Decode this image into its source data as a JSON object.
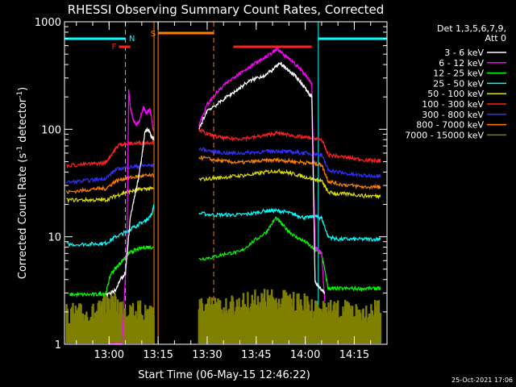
{
  "chart_data": {
    "type": "line",
    "title": "RHESSI Observing Summary Count Rates, Corrected",
    "xlabel": "Start Time (06-May-15 12:46:22)",
    "ylabel": "Corrected Count Rate (s⁻¹ detector⁻¹)",
    "ylabel_parts": {
      "main": "Corrected Count Rate (s",
      "sup1": "-1",
      "mid": " detector",
      "sup2": "-1",
      "end": ")"
    },
    "y_scale": "log",
    "ylim": [
      1,
      1000
    ],
    "xlim": [
      "12:46:22",
      "14:25:00"
    ],
    "y_tick_labels": [
      "1",
      "10",
      "100",
      "1000"
    ],
    "x_tick_labels": [
      "13:00",
      "13:15",
      "13:30",
      "13:45",
      "14:00",
      "14:15"
    ],
    "footer_date": "25-Oct-2021 17:06",
    "legend": {
      "header": [
        "Det 1,3,5,6,7,9,",
        "Att 0"
      ],
      "placement": "right"
    },
    "flags": {
      "labels": {
        "F": "F",
        "N": "N",
        "S": "S"
      },
      "night_intervals": [
        [
          "12:46:22",
          "13:05:00"
        ],
        [
          "14:04:00",
          "14:25:00"
        ]
      ],
      "flare_intervals": [
        [
          "13:03:00",
          "13:06:30"
        ],
        [
          "13:38:00",
          "14:02:00"
        ]
      ],
      "saa_intervals": [
        [
          "13:15:00",
          "13:32:00"
        ]
      ],
      "n_label_time": "13:07:00",
      "f_label_time": "13:01:30",
      "s_label_time": "13:13:30"
    },
    "data_gaps": [
      [
        "13:13:45",
        "13:27:30"
      ]
    ],
    "series": [
      {
        "name": "3 - 6 keV",
        "color": "#ffffff",
        "x": [
          "12:59:00",
          "13:02:00",
          "13:03:30",
          "13:05:00",
          "13:06:30",
          "13:08:00",
          "13:09:00",
          "13:10:00",
          "13:11:00",
          "13:12:00",
          "13:13:00",
          "13:13:45",
          "13:27:30",
          "13:30:00",
          "13:33:00",
          "13:36:00",
          "13:39:00",
          "13:42:00",
          "13:45:00",
          "13:48:00",
          "13:51:00",
          "13:52:30",
          "13:54:00",
          "13:56:00",
          "13:58:00",
          "14:00:00",
          "14:02:00",
          "14:03:00",
          "14:04:00",
          "14:05:00",
          "14:06:00"
        ],
        "values": [
          2.9,
          3.2,
          4,
          4.6,
          15,
          25,
          35,
          55,
          95,
          100,
          85,
          80,
          100,
          150,
          170,
          200,
          230,
          270,
          300,
          320,
          380,
          410,
          370,
          330,
          290,
          240,
          200,
          3.8,
          3.5,
          3.2,
          3.0
        ]
      },
      {
        "name": "6 - 12 keV",
        "color": "#ff00ff",
        "x": [
          "13:00:00",
          "13:02:00",
          "13:04:00",
          "13:05:30",
          "13:06:00",
          "13:06:30",
          "13:07:30",
          "13:08:30",
          "13:09:30",
          "13:10:30",
          "13:11:30",
          "13:12:30",
          "13:13:30",
          "13:27:30",
          "13:30:00",
          "13:33:00",
          "13:36:00",
          "13:39:00",
          "13:41:00",
          "13:44:00",
          "13:47:00",
          "13:50:00",
          "13:51:30",
          "13:53:00",
          "13:56:00",
          "13:59:00",
          "14:02:00",
          "14:03:00",
          "14:04:00",
          "14:05:00",
          "14:06:00"
        ],
        "values": [
          1,
          1,
          1,
          9,
          230,
          160,
          120,
          110,
          125,
          160,
          140,
          155,
          100,
          110,
          170,
          220,
          270,
          320,
          350,
          400,
          450,
          520,
          560,
          500,
          430,
          350,
          270,
          8,
          7.5,
          7,
          2.5
        ]
      },
      {
        "name": "12 - 25 keV",
        "color": "#00ff00",
        "x": [
          "12:48:00",
          "12:52:00",
          "12:56:00",
          "12:59:00",
          "13:00:30",
          "13:03:00",
          "13:05:00",
          "13:06:00",
          "13:08:00",
          "13:11:00",
          "13:13:30",
          "13:27:30",
          "13:32:00",
          "13:36:00",
          "13:40:00",
          "13:44:00",
          "13:48:00",
          "13:51:00",
          "13:54:00",
          "13:57:00",
          "14:00:00",
          "14:03:00",
          "14:05:00",
          "14:07:00",
          "14:09:00",
          "14:13:00",
          "14:17:00",
          "14:21:00",
          "14:23:00"
        ],
        "values": [
          2.9,
          2.9,
          2.9,
          3.0,
          4.5,
          5.5,
          6.5,
          7,
          7.5,
          8,
          8,
          6.2,
          6.5,
          7,
          7.2,
          9,
          11,
          15,
          12,
          10,
          9,
          7.5,
          7,
          3.3,
          3.3,
          3.3,
          3.3,
          3.3,
          3.3
        ]
      },
      {
        "name": "25 - 50 keV",
        "color": "#00ffff",
        "x": [
          "12:47:00",
          "12:52:00",
          "12:56:00",
          "12:59:00",
          "13:02:00",
          "13:05:00",
          "13:07:00",
          "13:09:00",
          "13:11:00",
          "13:13:00",
          "13:13:45",
          "13:27:30",
          "13:32:00",
          "13:36:00",
          "13:40:00",
          "13:44:00",
          "13:48:00",
          "13:51:00",
          "13:54:00",
          "13:57:00",
          "14:00:00",
          "14:03:00",
          "14:05:00",
          "14:07:00",
          "14:10:00",
          "14:14:00",
          "14:18:00",
          "14:22:00",
          "14:23:00"
        ],
        "values": [
          8.5,
          8.5,
          8.6,
          8.7,
          10,
          11,
          12,
          13,
          14,
          16,
          20,
          16.5,
          16,
          16,
          16,
          16.5,
          17.5,
          17.5,
          17,
          16,
          15,
          15.5,
          15,
          10,
          9.5,
          9.5,
          9.5,
          9.5,
          9.5
        ]
      },
      {
        "name": "50 - 100 keV",
        "color": "#dddd00",
        "x": [
          "12:47:00",
          "12:52:00",
          "12:56:00",
          "12:59:00",
          "13:02:00",
          "13:05:00",
          "13:08:00",
          "13:11:00",
          "13:13:45",
          "13:27:30",
          "13:32:00",
          "13:36:00",
          "13:40:00",
          "13:44:00",
          "13:48:00",
          "13:51:00",
          "13:54:00",
          "13:57:00",
          "14:00:00",
          "14:03:00",
          "14:05:00",
          "14:07:00",
          "14:10:00",
          "14:14:00",
          "14:18:00",
          "14:22:00",
          "14:23:00"
        ],
        "values": [
          22,
          22,
          22,
          22,
          24,
          26,
          27,
          28,
          28,
          34,
          35,
          36,
          37,
          38,
          40,
          41,
          40,
          38,
          36,
          34,
          33,
          26,
          25,
          25,
          24,
          24,
          24
        ]
      },
      {
        "name": "100 - 300 keV",
        "color": "#ff2020",
        "x": [
          "12:47:00",
          "12:52:00",
          "12:56:00",
          "12:59:00",
          "13:01:00",
          "13:03:00",
          "13:05:00",
          "13:08:00",
          "13:11:00",
          "13:13:45",
          "13:27:30",
          "13:30:00",
          "13:33:00",
          "13:36:00",
          "13:40:00",
          "13:44:00",
          "13:48:00",
          "13:51:00",
          "13:54:00",
          "13:57:00",
          "14:00:00",
          "14:03:00",
          "14:05:00",
          "14:07:00",
          "14:10:00",
          "14:14:00",
          "14:18:00",
          "14:22:00",
          "14:23:00"
        ],
        "values": [
          46,
          47,
          48,
          49,
          60,
          72,
          73,
          74,
          75,
          76,
          100,
          90,
          85,
          82,
          82,
          84,
          88,
          92,
          90,
          86,
          84,
          82,
          80,
          58,
          56,
          54,
          52,
          51,
          51
        ]
      },
      {
        "name": "300 - 800 keV",
        "color": "#3030ff",
        "x": [
          "12:47:00",
          "12:52:00",
          "12:56:00",
          "12:59:00",
          "13:02:00",
          "13:05:00",
          "13:08:00",
          "13:11:00",
          "13:13:45",
          "13:27:30",
          "13:32:00",
          "13:36:00",
          "13:40:00",
          "13:44:00",
          "13:48:00",
          "13:51:00",
          "13:54:00",
          "13:57:00",
          "14:00:00",
          "14:03:00",
          "14:05:00",
          "14:07:00",
          "14:10:00",
          "14:14:00",
          "14:18:00",
          "14:22:00",
          "14:23:00"
        ],
        "values": [
          32,
          33,
          34,
          35,
          42,
          44,
          45,
          46,
          46,
          66,
          62,
          60,
          60,
          61,
          62,
          63,
          62,
          61,
          60,
          59,
          58,
          42,
          40,
          38,
          37,
          37,
          37
        ]
      },
      {
        "name": "800 - 7000 keV",
        "color": "#ff8000",
        "x": [
          "12:47:00",
          "12:52:00",
          "12:56:00",
          "12:59:00",
          "13:02:00",
          "13:05:00",
          "13:08:00",
          "13:11:00",
          "13:13:45",
          "13:27:30",
          "13:32:00",
          "13:36:00",
          "13:40:00",
          "13:44:00",
          "13:48:00",
          "13:51:00",
          "13:54:00",
          "13:57:00",
          "14:00:00",
          "14:03:00",
          "14:05:00",
          "14:07:00",
          "14:10:00",
          "14:14:00",
          "14:18:00",
          "14:22:00",
          "14:23:00"
        ],
        "values": [
          26,
          27,
          28,
          28,
          33,
          35,
          36,
          37,
          37,
          55,
          52,
          50,
          49,
          50,
          51,
          52,
          51,
          50,
          49,
          48,
          47,
          33,
          31,
          30,
          29,
          29,
          29
        ]
      },
      {
        "name": "7000 - 15000 keV",
        "color": "#808000",
        "style": "band",
        "x": [
          "12:47:00",
          "12:52:00",
          "12:56:00",
          "13:00:00",
          "13:04:00",
          "13:08:00",
          "13:12:00",
          "13:13:45",
          "13:27:30",
          "13:32:00",
          "13:36:00",
          "13:40:00",
          "13:44:00",
          "13:48:00",
          "13:52:00",
          "13:56:00",
          "14:00:00",
          "14:04:00",
          "14:08:00",
          "14:12:00",
          "14:16:00",
          "14:20:00",
          "14:23:00"
        ],
        "values": [
          1.9,
          1.9,
          1.9,
          2.5,
          2.2,
          2.0,
          2.0,
          2.0,
          2.2,
          2.2,
          2.2,
          2.3,
          2.5,
          2.6,
          2.6,
          2.4,
          2.3,
          2.1,
          2.0,
          2.0,
          2.0,
          2.0,
          2.0
        ]
      }
    ]
  }
}
